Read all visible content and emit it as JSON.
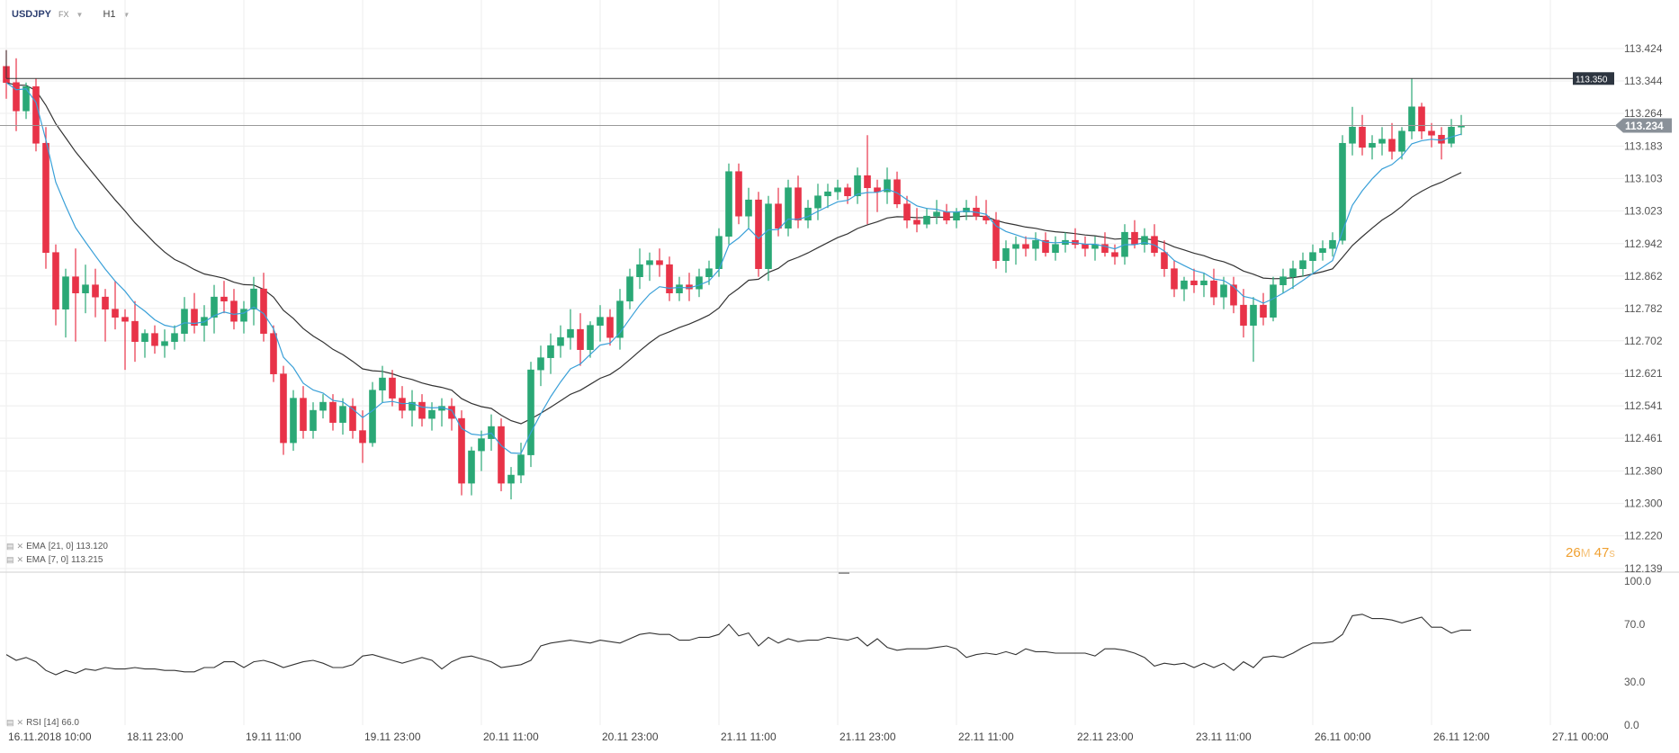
{
  "header": {
    "symbol": "USDJPY",
    "market": "FX",
    "timeframe": "H1"
  },
  "indicators": {
    "ema21": {
      "label": "EMA",
      "params": "[21, 0]",
      "value": "113.120"
    },
    "ema7": {
      "label": "EMA",
      "params": "[7, 0]",
      "value": "113.215"
    },
    "rsi": {
      "label": "RSI",
      "params": "[14]",
      "value": "66.0"
    }
  },
  "timer": {
    "minutes": "26",
    "minutes_unit": "M",
    "seconds": "47",
    "seconds_unit": "s"
  },
  "colors": {
    "up": "#2aa876",
    "down": "#e83348",
    "ema7": "#3aa0d8",
    "ema21": "#333333",
    "grid": "#eeeeee",
    "price_line": "#999999",
    "price_tag": "#8a9199",
    "marker_tag": "#2d3540"
  },
  "chart_data": [
    {
      "type": "candlestick",
      "title": "USDJPY H1",
      "x_tick_labels": [
        "16.11.2018  10:00",
        "18.11  23:00",
        "19.11  11:00",
        "19.11  23:00",
        "20.11  11:00",
        "20.11  23:00",
        "21.11  11:00",
        "21.11  23:00",
        "22.11  11:00",
        "22.11  23:00",
        "23.11  11:00",
        "26.11  00:00",
        "26.11  12:00",
        "27.11  00:00"
      ],
      "x_tick_index": [
        0,
        12,
        24,
        36,
        48,
        60,
        72,
        84,
        96,
        108,
        120,
        132,
        144,
        156
      ],
      "y_ticks": [
        "113.424",
        "113.344",
        "113.264",
        "113.183",
        "113.103",
        "113.023",
        "112.942",
        "112.862",
        "112.782",
        "112.702",
        "112.621",
        "112.541",
        "112.461",
        "112.380",
        "112.300",
        "112.220",
        "112.139"
      ],
      "ylim": [
        112.139,
        113.424
      ],
      "current_price": 113.234,
      "current_price_label": "113.234",
      "marker_price": 113.35,
      "marker_label": "113.350",
      "ohlc": [
        [
          113.38,
          113.42,
          113.3,
          113.34
        ],
        [
          113.34,
          113.4,
          113.22,
          113.27
        ],
        [
          113.27,
          113.34,
          113.25,
          113.33
        ],
        [
          113.33,
          113.35,
          113.17,
          113.19
        ],
        [
          113.19,
          113.23,
          112.88,
          112.92
        ],
        [
          112.92,
          112.94,
          112.74,
          112.78
        ],
        [
          112.78,
          112.88,
          112.71,
          112.86
        ],
        [
          112.86,
          112.93,
          112.7,
          112.82
        ],
        [
          112.82,
          112.89,
          112.77,
          112.84
        ],
        [
          112.84,
          112.88,
          112.76,
          112.81
        ],
        [
          112.81,
          112.83,
          112.7,
          112.78
        ],
        [
          112.78,
          112.85,
          112.73,
          112.76
        ],
        [
          112.76,
          112.78,
          112.63,
          112.75
        ],
        [
          112.75,
          112.8,
          112.65,
          112.7
        ],
        [
          112.7,
          112.73,
          112.66,
          112.72
        ],
        [
          112.72,
          112.74,
          112.67,
          112.69
        ],
        [
          112.69,
          112.73,
          112.66,
          112.7
        ],
        [
          112.7,
          112.74,
          112.68,
          112.72
        ],
        [
          112.72,
          112.81,
          112.7,
          112.78
        ],
        [
          112.78,
          112.82,
          112.72,
          112.74
        ],
        [
          112.74,
          112.79,
          112.7,
          112.76
        ],
        [
          112.76,
          112.84,
          112.72,
          112.81
        ],
        [
          112.81,
          112.85,
          112.77,
          112.8
        ],
        [
          112.8,
          112.83,
          112.73,
          112.75
        ],
        [
          112.75,
          112.8,
          112.72,
          112.78
        ],
        [
          112.78,
          112.86,
          112.74,
          112.83
        ],
        [
          112.83,
          112.87,
          112.7,
          112.72
        ],
        [
          112.72,
          112.74,
          112.6,
          112.62
        ],
        [
          112.62,
          112.64,
          112.42,
          112.45
        ],
        [
          112.45,
          112.58,
          112.43,
          112.56
        ],
        [
          112.56,
          112.59,
          112.46,
          112.48
        ],
        [
          112.48,
          112.55,
          112.46,
          112.53
        ],
        [
          112.53,
          112.57,
          112.51,
          112.55
        ],
        [
          112.55,
          112.57,
          112.48,
          112.5
        ],
        [
          112.5,
          112.56,
          112.47,
          112.54
        ],
        [
          112.54,
          112.56,
          112.46,
          112.48
        ],
        [
          112.48,
          112.53,
          112.4,
          112.45
        ],
        [
          112.45,
          112.6,
          112.44,
          112.58
        ],
        [
          112.58,
          112.64,
          112.55,
          112.61
        ],
        [
          112.61,
          112.63,
          112.54,
          112.56
        ],
        [
          112.56,
          112.59,
          112.51,
          112.53
        ],
        [
          112.53,
          112.58,
          112.49,
          112.55
        ],
        [
          112.55,
          112.57,
          112.49,
          112.51
        ],
        [
          112.51,
          112.55,
          112.48,
          112.53
        ],
        [
          112.53,
          112.56,
          112.49,
          112.54
        ],
        [
          112.54,
          112.56,
          112.48,
          112.51
        ],
        [
          112.51,
          112.53,
          112.32,
          112.35
        ],
        [
          112.35,
          112.44,
          112.32,
          112.43
        ],
        [
          112.43,
          112.48,
          112.38,
          112.46
        ],
        [
          112.46,
          112.52,
          112.43,
          112.49
        ],
        [
          112.49,
          112.51,
          112.33,
          112.35
        ],
        [
          112.35,
          112.39,
          112.31,
          112.37
        ],
        [
          112.37,
          112.45,
          112.35,
          112.42
        ],
        [
          112.42,
          112.65,
          112.39,
          112.63
        ],
        [
          112.63,
          112.69,
          112.59,
          112.66
        ],
        [
          112.66,
          112.72,
          112.62,
          112.69
        ],
        [
          112.69,
          112.74,
          112.66,
          112.71
        ],
        [
          112.71,
          112.78,
          112.68,
          112.73
        ],
        [
          112.73,
          112.77,
          112.64,
          112.68
        ],
        [
          112.68,
          112.75,
          112.66,
          112.74
        ],
        [
          112.74,
          112.79,
          112.7,
          112.76
        ],
        [
          112.76,
          112.78,
          112.69,
          112.71
        ],
        [
          112.71,
          112.83,
          112.68,
          112.8
        ],
        [
          112.8,
          112.88,
          112.78,
          112.86
        ],
        [
          112.86,
          112.93,
          112.83,
          112.89
        ],
        [
          112.89,
          112.92,
          112.85,
          112.9
        ],
        [
          112.9,
          112.93,
          112.86,
          112.89
        ],
        [
          112.89,
          112.91,
          112.8,
          112.82
        ],
        [
          112.82,
          112.86,
          112.8,
          112.84
        ],
        [
          112.84,
          112.87,
          112.8,
          112.83
        ],
        [
          112.83,
          112.88,
          112.81,
          112.86
        ],
        [
          112.86,
          112.9,
          112.84,
          112.88
        ],
        [
          112.88,
          112.98,
          112.86,
          112.96
        ],
        [
          112.96,
          113.14,
          112.94,
          113.12
        ],
        [
          113.12,
          113.14,
          112.99,
          113.01
        ],
        [
          113.01,
          113.08,
          112.98,
          113.05
        ],
        [
          113.05,
          113.07,
          112.86,
          112.88
        ],
        [
          112.88,
          113.06,
          112.85,
          113.04
        ],
        [
          113.04,
          113.08,
          112.96,
          112.98
        ],
        [
          112.98,
          113.1,
          112.96,
          113.08
        ],
        [
          113.08,
          113.11,
          112.98,
          113.0
        ],
        [
          113.0,
          113.05,
          112.98,
          113.03
        ],
        [
          113.03,
          113.09,
          113.0,
          113.06
        ],
        [
          113.06,
          113.09,
          113.03,
          113.07
        ],
        [
          113.07,
          113.1,
          113.05,
          113.08
        ],
        [
          113.08,
          113.09,
          113.04,
          113.06
        ],
        [
          113.06,
          113.13,
          113.04,
          113.11
        ],
        [
          113.11,
          113.21,
          112.99,
          113.08
        ],
        [
          113.08,
          113.1,
          113.02,
          113.07
        ],
        [
          113.07,
          113.13,
          113.04,
          113.1
        ],
        [
          113.1,
          113.12,
          113.03,
          113.04
        ],
        [
          113.04,
          113.06,
          112.98,
          113.0
        ],
        [
          113.0,
          113.03,
          112.97,
          112.99
        ],
        [
          112.99,
          113.03,
          112.98,
          113.01
        ],
        [
          113.01,
          113.05,
          112.99,
          113.02
        ],
        [
          113.02,
          113.04,
          112.99,
          113.0
        ],
        [
          113.0,
          113.03,
          112.98,
          113.02
        ],
        [
          113.02,
          113.05,
          113.0,
          113.03
        ],
        [
          113.03,
          113.06,
          113.0,
          113.01
        ],
        [
          113.01,
          113.05,
          112.99,
          113.0
        ],
        [
          113.0,
          113.02,
          112.88,
          112.9
        ],
        [
          112.9,
          112.95,
          112.87,
          112.93
        ],
        [
          112.93,
          112.96,
          112.89,
          112.94
        ],
        [
          112.94,
          112.96,
          112.91,
          112.93
        ],
        [
          112.93,
          112.97,
          112.9,
          112.95
        ],
        [
          112.95,
          112.97,
          112.91,
          112.92
        ],
        [
          112.92,
          112.96,
          112.9,
          112.94
        ],
        [
          112.94,
          112.97,
          112.92,
          112.95
        ],
        [
          112.95,
          112.98,
          112.93,
          112.94
        ],
        [
          112.94,
          112.96,
          112.91,
          112.93
        ],
        [
          112.93,
          112.96,
          112.9,
          112.94
        ],
        [
          112.94,
          112.97,
          112.91,
          112.92
        ],
        [
          112.92,
          112.94,
          112.89,
          112.91
        ],
        [
          112.91,
          112.99,
          112.89,
          112.97
        ],
        [
          112.97,
          113.0,
          112.93,
          112.94
        ],
        [
          112.94,
          112.98,
          112.92,
          112.96
        ],
        [
          112.96,
          112.99,
          112.91,
          112.92
        ],
        [
          112.92,
          112.95,
          112.86,
          112.88
        ],
        [
          112.88,
          112.9,
          112.81,
          112.83
        ],
        [
          112.83,
          112.86,
          112.8,
          112.85
        ],
        [
          112.85,
          112.88,
          112.82,
          112.84
        ],
        [
          112.84,
          112.87,
          112.81,
          112.85
        ],
        [
          112.85,
          112.88,
          112.79,
          112.81
        ],
        [
          112.81,
          112.86,
          112.78,
          112.84
        ],
        [
          112.84,
          112.86,
          112.77,
          112.79
        ],
        [
          112.79,
          112.83,
          112.71,
          112.74
        ],
        [
          112.74,
          112.81,
          112.65,
          112.79
        ],
        [
          112.79,
          112.82,
          112.74,
          112.76
        ],
        [
          112.76,
          112.86,
          112.75,
          112.84
        ],
        [
          112.84,
          112.88,
          112.82,
          112.86
        ],
        [
          112.86,
          112.9,
          112.83,
          112.88
        ],
        [
          112.88,
          112.92,
          112.86,
          112.9
        ],
        [
          112.9,
          112.94,
          112.87,
          112.92
        ],
        [
          112.92,
          112.95,
          112.9,
          112.93
        ],
        [
          112.93,
          112.97,
          112.91,
          112.95
        ],
        [
          112.95,
          113.21,
          112.94,
          113.19
        ],
        [
          113.19,
          113.28,
          113.16,
          113.23
        ],
        [
          113.23,
          113.26,
          113.16,
          113.18
        ],
        [
          113.18,
          113.21,
          113.15,
          113.19
        ],
        [
          113.19,
          113.23,
          113.16,
          113.2
        ],
        [
          113.2,
          113.24,
          113.15,
          113.17
        ],
        [
          113.17,
          113.23,
          113.15,
          113.22
        ],
        [
          113.22,
          113.35,
          113.2,
          113.28
        ],
        [
          113.28,
          113.29,
          113.2,
          113.22
        ],
        [
          113.22,
          113.24,
          113.18,
          113.21
        ],
        [
          113.21,
          113.23,
          113.15,
          113.19
        ],
        [
          113.19,
          113.25,
          113.18,
          113.23
        ],
        [
          113.23,
          113.26,
          113.21,
          113.234
        ]
      ]
    },
    {
      "type": "line",
      "title": "RSI [14]",
      "ylim": [
        0,
        100
      ],
      "y_ticks": [
        "100.0",
        "70.0",
        "30.0",
        "0.0"
      ],
      "values": [
        49,
        45,
        47,
        44,
        38,
        35,
        38,
        36,
        39,
        38,
        40,
        39,
        39,
        40,
        39,
        39,
        38,
        38,
        37,
        37,
        40,
        40,
        44,
        44,
        40,
        44,
        45,
        43,
        40,
        42,
        44,
        45,
        43,
        40,
        40,
        42,
        48,
        49,
        47,
        45,
        43,
        45,
        47,
        45,
        39,
        44,
        47,
        48,
        46,
        44,
        40,
        41,
        42,
        45,
        55,
        57,
        58,
        59,
        58,
        57,
        59,
        58,
        57,
        60,
        63,
        64,
        63,
        63,
        59,
        59,
        61,
        61,
        63,
        70,
        62,
        64,
        55,
        61,
        57,
        60,
        58,
        59,
        59,
        61,
        60,
        59,
        61,
        55,
        60,
        54,
        52,
        53,
        53,
        53,
        54,
        55,
        53,
        47,
        49,
        50,
        49,
        51,
        49,
        53,
        51,
        51,
        50,
        50,
        50,
        50,
        48,
        53,
        53,
        52,
        50,
        47,
        41,
        43,
        42,
        43,
        40,
        43,
        40,
        43,
        38,
        44,
        40,
        47,
        48,
        47,
        50,
        54,
        57,
        57,
        58,
        63,
        76,
        77,
        74,
        74,
        73,
        71,
        73,
        75,
        68,
        68,
        64,
        66,
        66
      ]
    }
  ]
}
